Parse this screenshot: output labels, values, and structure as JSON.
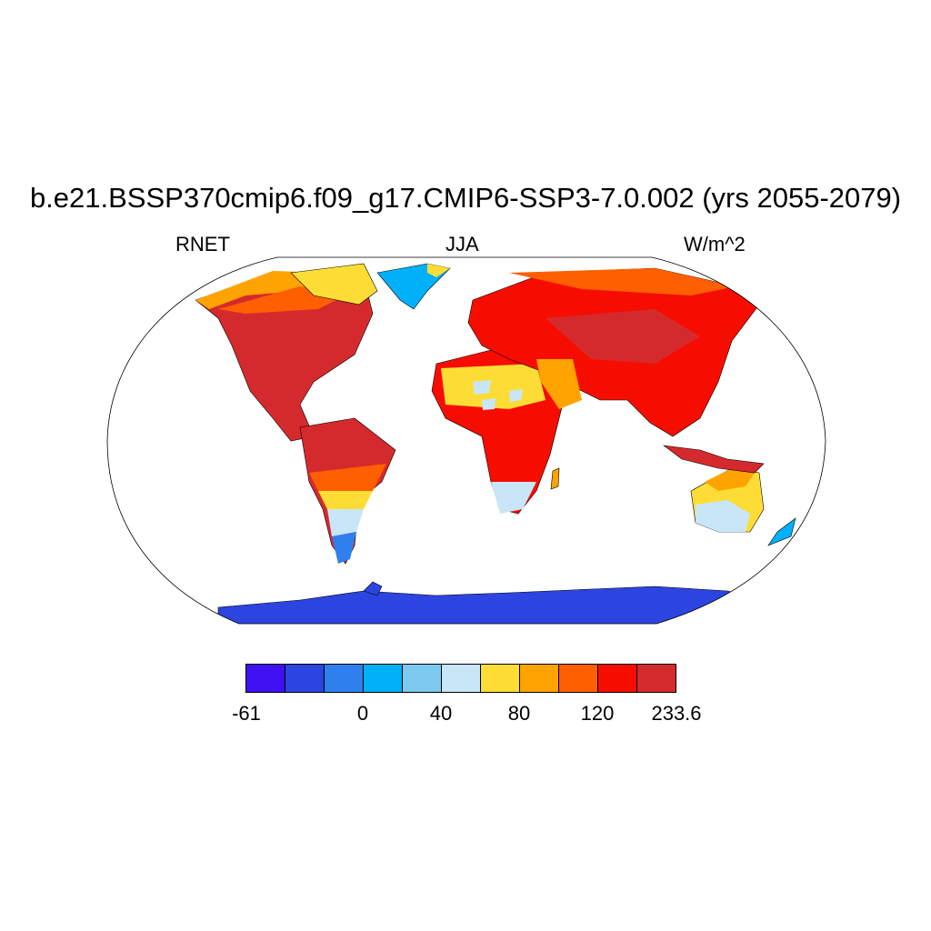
{
  "title": "b.e21.BSSP370cmip6.f09_g17.CMIP6-SSP3-7.0.002 (yrs 2055-2079)",
  "left_label": "RNET",
  "center_label": "JJA",
  "right_label": "W/m^2",
  "colorbar": {
    "colors": [
      "#3e10f2",
      "#2c45e0",
      "#2f80ee",
      "#00b0f8",
      "#7dc9ef",
      "#c9e6f8",
      "#fddd35",
      "#fea300",
      "#fe5f00",
      "#f70d00",
      "#d52a2d"
    ],
    "labels": [
      "-61",
      "0",
      "40",
      "80",
      "120",
      "233.6"
    ]
  },
  "colors": {
    "ocean": "#ffffff",
    "outline": "#000000",
    "very_hot": "#d52a2d",
    "hot": "#f70d00",
    "warm": "#fe5f00",
    "mild": "#fea300",
    "yellow": "#fddd35",
    "pale_blue": "#c9e6f8",
    "light_blue": "#7dc9ef",
    "cyan": "#00b0f8",
    "blue": "#2f80ee",
    "deep_blue": "#2c45e0"
  }
}
